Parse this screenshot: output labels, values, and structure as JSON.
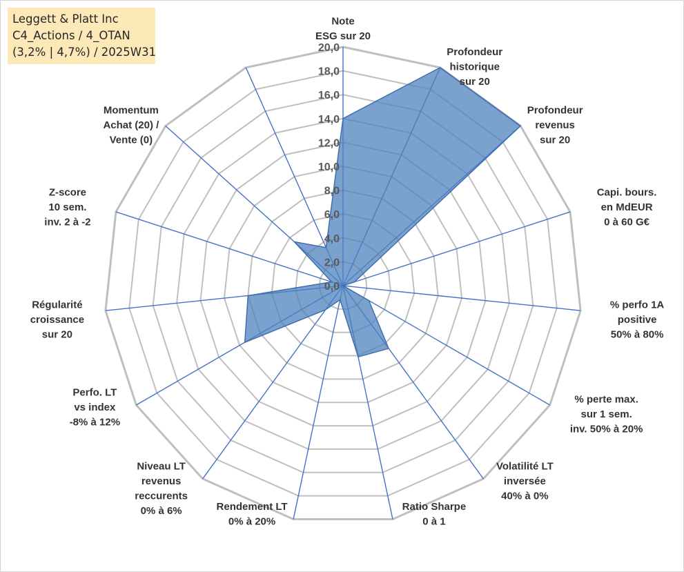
{
  "title": {
    "lines": [
      "Leggett & Platt Inc",
      "C4_Actions / 4_OTAN",
      "(3,2% | 4,7%) / 2025W31"
    ]
  },
  "chart_data": {
    "type": "radar",
    "rmin": 0,
    "rmax": 20,
    "ticks": [
      "0,0",
      "2,0",
      "4,0",
      "6,0",
      "8,0",
      "10,0",
      "12,0",
      "14,0",
      "16,0",
      "18,0",
      "20,0"
    ],
    "axes": [
      {
        "label": [
          "Note",
          "ESG sur 20"
        ],
        "value": 14
      },
      {
        "label": [
          "Profondeur",
          "historique",
          "sur 20"
        ],
        "value": 20
      },
      {
        "label": [
          "Profondeur",
          "revenus",
          "sur 20"
        ],
        "value": 20
      },
      {
        "label": [
          "Capi. bours.",
          "en MdEUR",
          "0 à 60 G€"
        ],
        "value": 1
      },
      {
        "label": [
          "% perfo 1A",
          "positive",
          "50% à 80%"
        ],
        "value": 0
      },
      {
        "label": [
          "% perte max.",
          "sur 1 sem.",
          "inv. 50% à 20%"
        ],
        "value": 2.5
      },
      {
        "label": [
          "Volatilité LT",
          "inversée",
          "40% à 0%"
        ],
        "value": 6.5
      },
      {
        "label": [
          "Ratio Sharpe",
          "0 à 1"
        ],
        "value": 6.1
      },
      {
        "label": [
          "Rendement LT",
          "0% à 20%"
        ],
        "value": 1.2
      },
      {
        "label": [
          "Niveau LT",
          "revenus",
          "reccurents",
          "0% à 6%"
        ],
        "value": 2.5
      },
      {
        "label": [
          "Perfo. LT",
          "vs index",
          "-8% à 12%"
        ],
        "value": 9.5
      },
      {
        "label": [
          "Régularité",
          "croissance",
          "sur 20"
        ],
        "value": 8.0
      },
      {
        "label": [
          "Z-score",
          "10 sem.",
          "inv. 2 à -2"
        ],
        "value": 1.0
      },
      {
        "label": [
          "Momentum",
          "Achat (20) /",
          "Vente (0)"
        ],
        "value": 5.5
      },
      {
        "label": [
          "",
          ""
        ],
        "value": 3.5
      }
    ],
    "series": [
      {
        "values": [
          14,
          20,
          20,
          1,
          0,
          2.5,
          6.5,
          6.1,
          1.2,
          2.5,
          9.5,
          8.0,
          1.0,
          5.5,
          3.5
        ]
      }
    ],
    "colors": {
      "fill": "#4f81bd",
      "fill_opacity": "0.75",
      "series_stroke": "#3f6fae",
      "grid": "#bfbfbf",
      "spoke": "#4472c4"
    }
  }
}
